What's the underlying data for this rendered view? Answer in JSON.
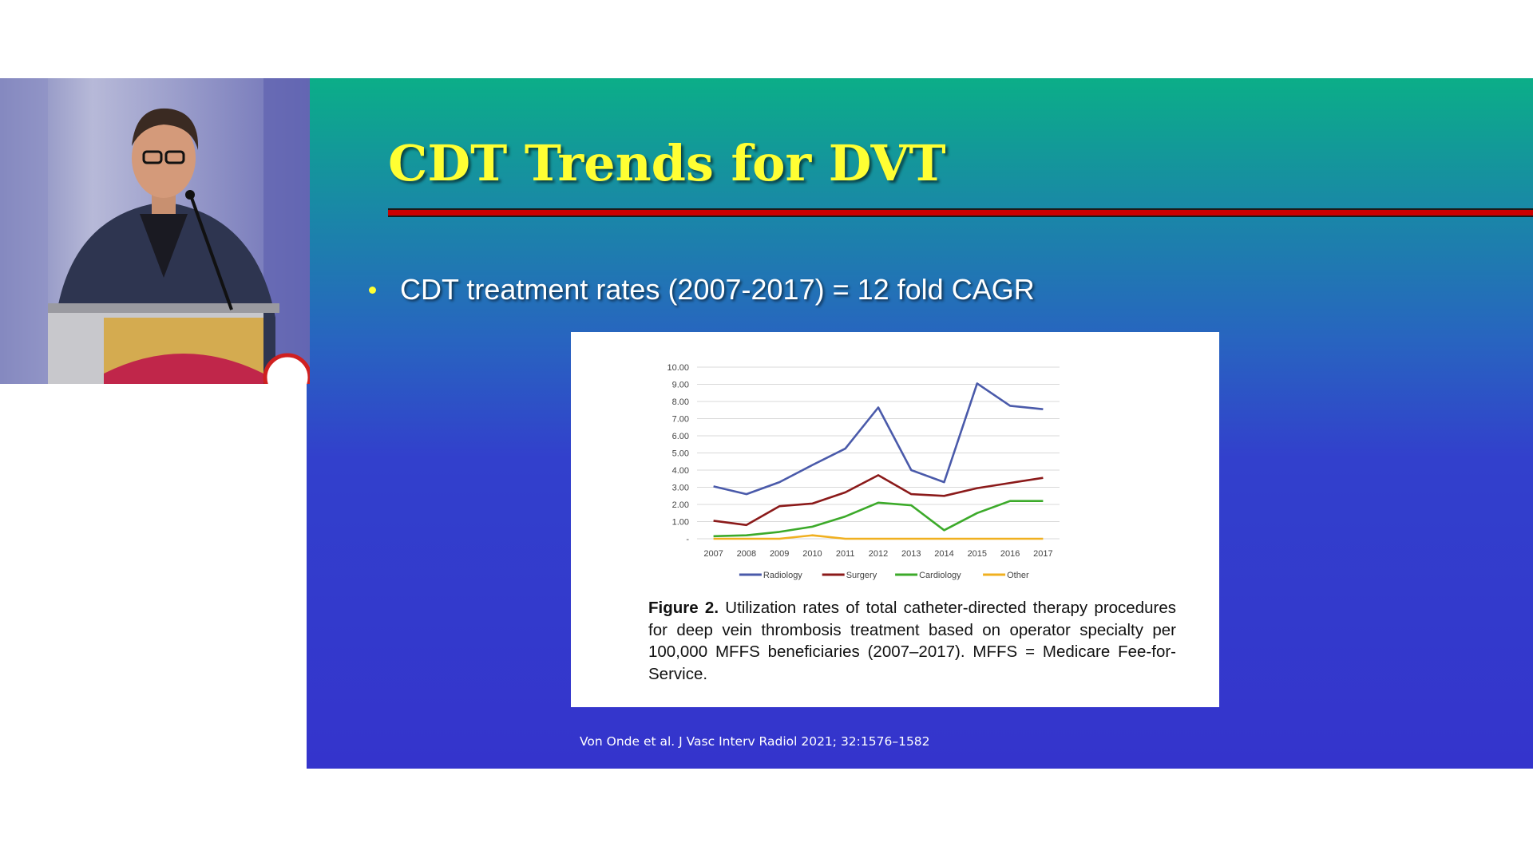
{
  "slide": {
    "title": "CDT Trends for DVT",
    "bullet": "CDT treatment rates (2007-2017) = 12 fold CAGR",
    "citation": "Von Onde et al. J Vasc Interv Radiol 2021; 32:1576–1582"
  },
  "figure": {
    "caption_label": "Figure 2.",
    "caption_text": "Utilization rates of total catheter-directed therapy procedures for deep vein thrombosis treatment based on operator specialty per 100,000 MFFS beneficiaries (2007–2017). MFFS = Medicare Fee-for-Service."
  },
  "colors": {
    "title_text": "#ffff33",
    "title_rule": "#cc0000",
    "radiology": "#4a5aaa",
    "surgery": "#8b1a1a",
    "cardiology": "#3caa2a",
    "other": "#f0b020"
  },
  "chart_data": {
    "type": "line",
    "title": "",
    "xlabel": "",
    "ylabel": "",
    "x": [
      "2007",
      "2008",
      "2009",
      "2010",
      "2011",
      "2012",
      "2013",
      "2014",
      "2015",
      "2016",
      "2017"
    ],
    "y_ticks": [
      "10.00",
      "9.00",
      "8.00",
      "7.00",
      "6.00",
      "5.00",
      "4.00",
      "3.00",
      "2.00",
      "1.00",
      "-"
    ],
    "ylim": [
      0,
      10
    ],
    "grid": true,
    "legend_position": "bottom",
    "series": [
      {
        "name": "Radiology",
        "color": "#4a5aaa",
        "values": [
          3.05,
          2.6,
          3.3,
          4.3,
          5.25,
          7.65,
          4.0,
          3.3,
          9.05,
          7.75,
          7.55
        ]
      },
      {
        "name": "Surgery",
        "color": "#8b1a1a",
        "values": [
          1.05,
          0.8,
          1.9,
          2.05,
          2.7,
          3.7,
          2.6,
          2.5,
          2.95,
          3.25,
          3.55
        ]
      },
      {
        "name": "Cardiology",
        "color": "#3caa2a",
        "values": [
          0.15,
          0.2,
          0.4,
          0.7,
          1.3,
          2.1,
          1.95,
          0.5,
          1.5,
          2.2,
          2.2
        ]
      },
      {
        "name": "Other",
        "color": "#f0b020",
        "values": [
          0.0,
          0.0,
          0.0,
          0.2,
          0.0,
          0.0,
          0.0,
          0.0,
          0.0,
          0.0,
          0.0
        ]
      }
    ]
  }
}
